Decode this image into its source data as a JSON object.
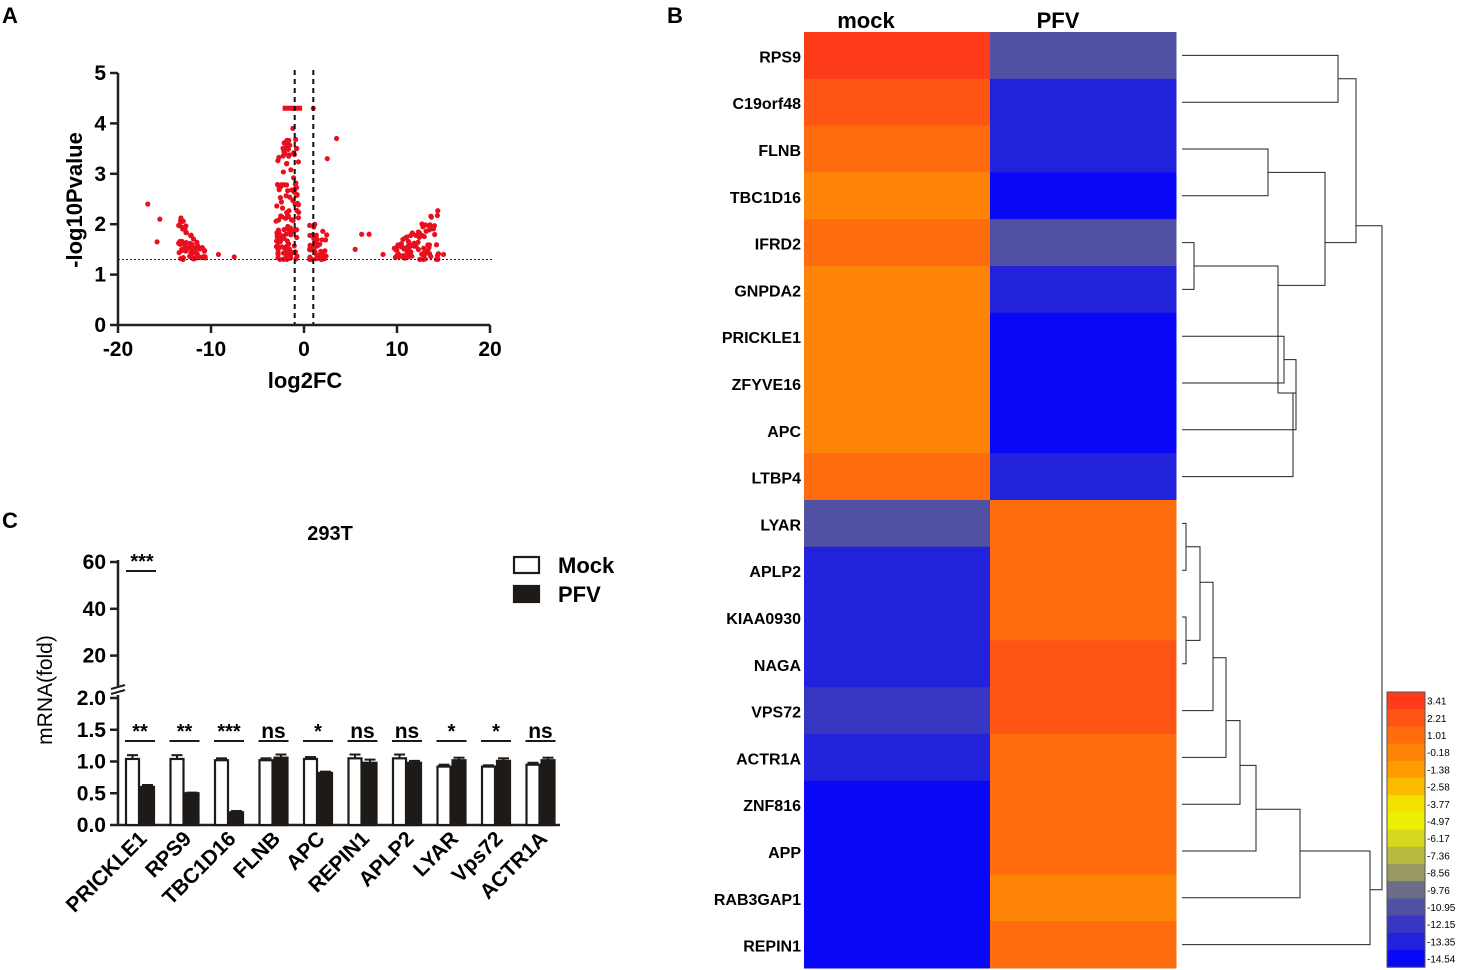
{
  "figure": {
    "colors": {
      "red_dot": "#e8101f",
      "bar_black": "#1e1a17",
      "axis": "#231f20"
    }
  },
  "chart_data": [
    {
      "id": "A",
      "panel_label": "A",
      "type": "scatter",
      "title": "",
      "xlabel": "log2FC",
      "ylabel": "-log10Pvalue",
      "xlim": [
        -20,
        20
      ],
      "ylim": [
        0,
        5
      ],
      "xticks": [
        -20,
        -10,
        0,
        10,
        20
      ],
      "xtick_labels": [
        "-20",
        "-10",
        "0",
        "10",
        "20"
      ],
      "yticks": [
        0,
        1,
        2,
        3,
        4,
        5
      ],
      "ytick_labels": [
        "0",
        "1",
        "2",
        "3",
        "4",
        "5"
      ],
      "threshold_y": 1.3,
      "threshold_x": [
        -1,
        1
      ],
      "clusters": [
        {
          "x": [
            -13.5,
            -10.5
          ],
          "y": [
            1.3,
            2.2
          ],
          "n": 70,
          "trend": "down-right"
        },
        {
          "x": [
            -3.0,
            -0.5
          ],
          "y": [
            1.3,
            3.7
          ],
          "n": 130,
          "trend": "none"
        },
        {
          "x": [
            0.6,
            2.5
          ],
          "y": [
            1.3,
            2.0
          ],
          "n": 40,
          "trend": "none"
        },
        {
          "x": [
            9.5,
            14.5
          ],
          "y": [
            1.3,
            2.3
          ],
          "n": 90,
          "trend": "up-right"
        }
      ],
      "points": [
        {
          "x": -16.8,
          "y": 2.4
        },
        {
          "x": -15.5,
          "y": 2.1
        },
        {
          "x": -15.8,
          "y": 1.65
        },
        {
          "x": -7.5,
          "y": 1.35
        },
        {
          "x": -9.2,
          "y": 1.4
        },
        {
          "x": 1.0,
          "y": 4.3
        },
        {
          "x": 3.5,
          "y": 3.7
        },
        {
          "x": 2.5,
          "y": 3.3
        },
        {
          "x": 6.2,
          "y": 1.8
        },
        {
          "x": 7.0,
          "y": 1.8
        },
        {
          "x": 5.5,
          "y": 1.5
        },
        {
          "x": 8.5,
          "y": 1.4
        },
        {
          "x": 15.0,
          "y": 1.4
        },
        {
          "x": -1.2,
          "y": 3.9
        },
        {
          "x": -0.8,
          "y": 3.5
        }
      ],
      "cap_bar": {
        "x": [
          -2.3,
          -0.2
        ],
        "y": 4.3
      }
    },
    {
      "id": "B",
      "panel_label": "B",
      "type": "heatmap",
      "columns": [
        "mock",
        "PFV"
      ],
      "rows": [
        "RPS9",
        "C19orf48",
        "FLNB",
        "TBC1D16",
        "IFRD2",
        "GNPDA2",
        "PRICKLE1",
        "ZFYVE16",
        "APC",
        "LTBP4",
        "LYAR",
        "APLP2",
        "KIAA0930",
        "NAGA",
        "VPS72",
        "ACTR1A",
        "ZNF816",
        "APP",
        "RAB3GAP1",
        "REPIN1"
      ],
      "values": [
        [
          3.0,
          -11.2
        ],
        [
          2.2,
          -13.5
        ],
        [
          1.3,
          -13.5
        ],
        [
          0.4,
          -14.5
        ],
        [
          1.5,
          -11.5
        ],
        [
          0.4,
          -12.8
        ],
        [
          -0.5,
          -14.5
        ],
        [
          -0.5,
          -14.5
        ],
        [
          -0.5,
          -14.5
        ],
        [
          1.6,
          -13.0
        ],
        [
          -11.2,
          1.6
        ],
        [
          -13.2,
          1.2
        ],
        [
          -13.2,
          1.2
        ],
        [
          -13.2,
          2.4
        ],
        [
          -11.6,
          2.6
        ],
        [
          -12.8,
          1.5
        ],
        [
          -14.5,
          1.4
        ],
        [
          -14.5,
          1.4
        ],
        [
          -14.5,
          0.2
        ],
        [
          -14.5,
          1.3
        ]
      ],
      "legend_values": [
        "3.41",
        "2.21",
        "1.01",
        "-0.18",
        "-1.38",
        "-2.58",
        "-3.77",
        "-4.97",
        "-6.17",
        "-7.36",
        "-8.56",
        "-9.76",
        "-10.95",
        "-12.15",
        "-13.35",
        "-14.54"
      ],
      "legend_colors": [
        "#fe3c1a",
        "#fe5414",
        "#fe6c0e",
        "#fe8408",
        "#fe9c02",
        "#fbbb00",
        "#f2e201",
        "#ecef01",
        "#d5d81f",
        "#b9b940",
        "#999966",
        "#6d6d8b",
        "#5151a3",
        "#3636c2",
        "#2222dd",
        "#0808f7"
      ],
      "dendrogram": "hierarchical clustering of rows"
    },
    {
      "id": "C",
      "panel_label": "C",
      "type": "bar",
      "title": "293T",
      "ylabel": "mRNA(fold)",
      "categories": [
        "PRICKLE1",
        "RPS9",
        "TBC1D16",
        "FLNB",
        "APC",
        "REPIN1",
        "APLP2",
        "LYAR",
        "Vps72",
        "ACTR1A"
      ],
      "series": [
        {
          "name": "Mock",
          "values": [
            1.04,
            1.04,
            1.02,
            1.02,
            1.04,
            1.05,
            1.05,
            0.92,
            0.92,
            0.95
          ],
          "errors": [
            0.06,
            0.06,
            0.03,
            0.03,
            0.03,
            0.06,
            0.06,
            0.03,
            0.02,
            0.03
          ]
        },
        {
          "name": "PFV",
          "values": [
            0.6,
            0.5,
            0.2,
            1.06,
            0.82,
            0.98,
            0.98,
            1.02,
            1.01,
            1.02
          ],
          "errors": [
            0.03,
            0.01,
            0.02,
            0.05,
            0.02,
            0.05,
            0.03,
            0.04,
            0.04,
            0.04
          ]
        }
      ],
      "significance": [
        "**",
        "**",
        "***",
        "ns",
        "*",
        "ns",
        "ns",
        "*",
        "*",
        "ns"
      ],
      "extra_significance": {
        "category": "PRICKLE1",
        "label": "***",
        "y": 57
      },
      "yticks_lower": [
        "0.0",
        "0.5",
        "1.0",
        "1.5",
        "2.0"
      ],
      "yticks_upper": [
        "20",
        "40",
        "60"
      ],
      "ylim_lower": [
        0,
        2.0
      ],
      "ylim_upper": [
        10,
        60
      ]
    }
  ]
}
